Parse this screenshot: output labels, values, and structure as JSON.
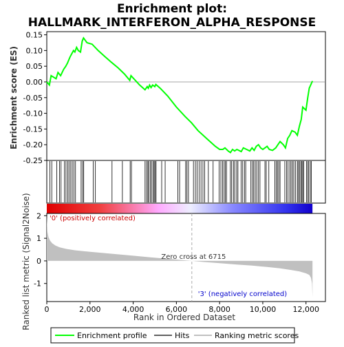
{
  "title_line1": "Enrichment plot:",
  "title_line2": "HALLMARK_INTERFERON_ALPHA_RESPONSE",
  "chart_data": [
    {
      "type": "line",
      "panel": "enrichment",
      "ylabel": "Enrichment score (ES)",
      "ylim": [
        -0.25,
        0.16
      ],
      "yticks": [
        -0.25,
        -0.2,
        -0.15,
        -0.1,
        -0.05,
        0.0,
        0.05,
        0.1,
        0.15
      ],
      "ytick_labels": [
        "-0.25",
        "-0.20",
        "-0.15",
        "-0.10",
        "-0.05",
        "0.00",
        "0.05",
        "0.10",
        "0.15"
      ],
      "xlim": [
        0,
        12300
      ],
      "series": [
        {
          "name": "Enrichment profile",
          "color": "#00ff00",
          "x": [
            0,
            120,
            200,
            430,
            520,
            640,
            780,
            880,
            960,
            1020,
            1080,
            1160,
            1240,
            1300,
            1380,
            1460,
            1560,
            1640,
            1700,
            1860,
            2100,
            2380,
            2700,
            3000,
            3300,
            3600,
            3840,
            3900,
            4300,
            4550,
            4650,
            4700,
            4760,
            4830,
            4900,
            5000,
            5050,
            5250,
            5600,
            6000,
            6400,
            6700,
            7000,
            7400,
            7800,
            8000,
            8150,
            8250,
            8400,
            8500,
            8600,
            8700,
            8800,
            9000,
            9100,
            9250,
            9400,
            9500,
            9600,
            9700,
            9800,
            9900,
            10000,
            10100,
            10200,
            10300,
            10450,
            10600,
            10700,
            10800,
            10950,
            11050,
            11150,
            11250,
            11350,
            11500,
            11600,
            11700,
            11780,
            11850,
            12000,
            12080,
            12150,
            12300
          ],
          "y": [
            0.0,
            -0.01,
            0.02,
            0.01,
            0.03,
            0.02,
            0.04,
            0.05,
            0.06,
            0.07,
            0.08,
            0.09,
            0.1,
            0.095,
            0.11,
            0.1,
            0.095,
            0.13,
            0.14,
            0.125,
            0.12,
            0.1,
            0.08,
            0.062,
            0.045,
            0.025,
            0.005,
            0.02,
            -0.01,
            -0.025,
            -0.015,
            -0.02,
            -0.01,
            -0.018,
            -0.01,
            -0.015,
            -0.008,
            -0.02,
            -0.045,
            -0.08,
            -0.11,
            -0.13,
            -0.155,
            -0.18,
            -0.205,
            -0.215,
            -0.215,
            -0.21,
            -0.22,
            -0.225,
            -0.215,
            -0.22,
            -0.215,
            -0.222,
            -0.21,
            -0.215,
            -0.22,
            -0.21,
            -0.218,
            -0.205,
            -0.2,
            -0.21,
            -0.215,
            -0.21,
            -0.205,
            -0.215,
            -0.218,
            -0.21,
            -0.2,
            -0.19,
            -0.2,
            -0.21,
            -0.18,
            -0.17,
            -0.155,
            -0.16,
            -0.17,
            -0.14,
            -0.12,
            -0.08,
            -0.09,
            -0.05,
            -0.02,
            0.003
          ]
        }
      ]
    },
    {
      "type": "scatter",
      "panel": "hits",
      "name": "Hits",
      "color": "#000000",
      "x": [
        140,
        230,
        460,
        590,
        660,
        820,
        890,
        970,
        1030,
        1110,
        1180,
        1260,
        1330,
        1590,
        1660,
        1710,
        2150,
        2250,
        3020,
        3500,
        3860,
        3920,
        4550,
        4620,
        4680,
        4720,
        4790,
        4850,
        4920,
        4970,
        5010,
        5060,
        5320,
        5480,
        6070,
        6150,
        6430,
        6490,
        6560,
        6790,
        6880,
        6960,
        7050,
        7140,
        7230,
        7310,
        7480,
        7700,
        7980,
        8060,
        8140,
        8210,
        8270,
        8320,
        8500,
        8560,
        8640,
        8700,
        8790,
        8850,
        9000,
        9070,
        9150,
        9210,
        9450,
        9520,
        9580,
        9650,
        9720,
        9800,
        9870,
        10100,
        10160,
        10280,
        10560,
        10620,
        10680,
        10740,
        10800,
        11020,
        11100,
        11170,
        11250,
        11310,
        11380,
        11440,
        11520,
        11600,
        11650,
        11700,
        11760,
        11810,
        11850,
        11900,
        12020,
        12080,
        12130,
        12200,
        12250
      ]
    },
    {
      "type": "heatmap",
      "panel": "ranking-bar",
      "labels": [
        "red",
        "white",
        "blue"
      ],
      "xlim": [
        0,
        12300
      ],
      "values": [
        2.0,
        0.0,
        -1.6
      ]
    },
    {
      "type": "area",
      "panel": "ranked-metric",
      "ylabel": "Ranked list metric (Signal2Noise)",
      "xlabel": "Rank in Ordered Dataset",
      "ylim": [
        -1.8,
        2.1
      ],
      "yticks": [
        -1,
        0,
        1,
        2
      ],
      "ytick_labels": [
        "-1",
        "0",
        "1",
        "2"
      ],
      "xlim": [
        0,
        12900
      ],
      "xticks": [
        0,
        2000,
        4000,
        6000,
        8000,
        10000,
        12000
      ],
      "xtick_labels": [
        "0",
        "2,000",
        "4,000",
        "6,000",
        "8,000",
        "10,000",
        "12,000"
      ],
      "series": [
        {
          "name": "Ranking metric scores",
          "color": "#c0c0c0",
          "x": [
            0,
            30,
            80,
            150,
            250,
            400,
            600,
            900,
            1300,
            1800,
            2500,
            3200,
            4000,
            4800,
            5500,
            6200,
            6715,
            7300,
            8000,
            8800,
            9500,
            10200,
            10800,
            11300,
            11700,
            12000,
            12150,
            12230,
            12280,
            12300
          ],
          "y": [
            2.0,
            1.3,
            1.05,
            0.9,
            0.78,
            0.68,
            0.6,
            0.53,
            0.47,
            0.42,
            0.36,
            0.3,
            0.23,
            0.16,
            0.1,
            0.04,
            0.0,
            -0.05,
            -0.1,
            -0.16,
            -0.21,
            -0.27,
            -0.33,
            -0.4,
            -0.47,
            -0.55,
            -0.62,
            -0.75,
            -1.0,
            -1.6
          ]
        }
      ],
      "annotations": {
        "zero_cross_label": "Zero cross at 6715",
        "zero_cross_x": 6715,
        "positive_label": "'0' (positively correlated)",
        "negative_label": "'3' (negatively correlated)"
      }
    }
  ],
  "legend": [
    {
      "name": "Enrichment profile",
      "color": "#00ff00"
    },
    {
      "name": "Hits",
      "color": "#000000"
    },
    {
      "name": "Ranking metric scores",
      "color": "#c0c0c0"
    }
  ]
}
